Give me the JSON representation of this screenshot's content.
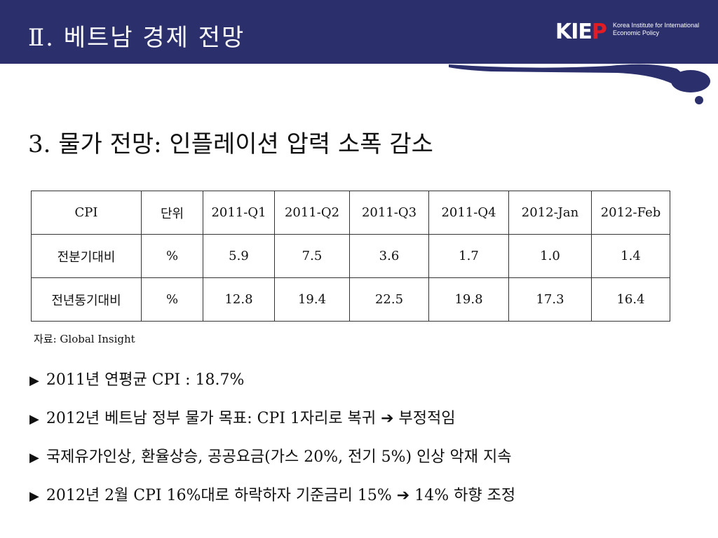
{
  "header": {
    "title": "Ⅱ. 베트남 경제 전망",
    "logo": {
      "mark_left": "KIE",
      "mark_right": "P",
      "text": "Korea Institute for International Economic Policy"
    }
  },
  "section_title": "3. 물가 전망: 인플레이션 압력 소폭 감소",
  "table": {
    "headers": [
      "CPI",
      "단위",
      "2011-Q1",
      "2011-Q2",
      "2011-Q3",
      "2011-Q4",
      "2012-Jan",
      "2012-Feb"
    ],
    "rows": [
      [
        "전분기대비",
        "%",
        "5.9",
        "7.5",
        "3.6",
        "1.7",
        "1.0",
        "1.4"
      ],
      [
        "전년동기대비",
        "%",
        "12.8",
        "19.4",
        "22.5",
        "19.8",
        "17.3",
        "16.4"
      ]
    ]
  },
  "source_note": "자료: Global Insight",
  "bullets": [
    "2011년 연평균 CPI : 18.7%",
    "2012년 베트남 정부 물가 목표: CPI 1자리로 복귀 ➔ 부정적임",
    "국제유가인상, 환율상승, 공공요금(가스 20%, 전기 5%) 인상 악재 지속",
    "2012년 2월 CPI 16%대로 하락하자 기준금리 15% ➔ 14% 하향 조정"
  ],
  "colors": {
    "header_bg": "#2b2f6c",
    "logo_accent": "#e31b23"
  },
  "icons": {
    "bullet": "triangle-right-icon"
  }
}
